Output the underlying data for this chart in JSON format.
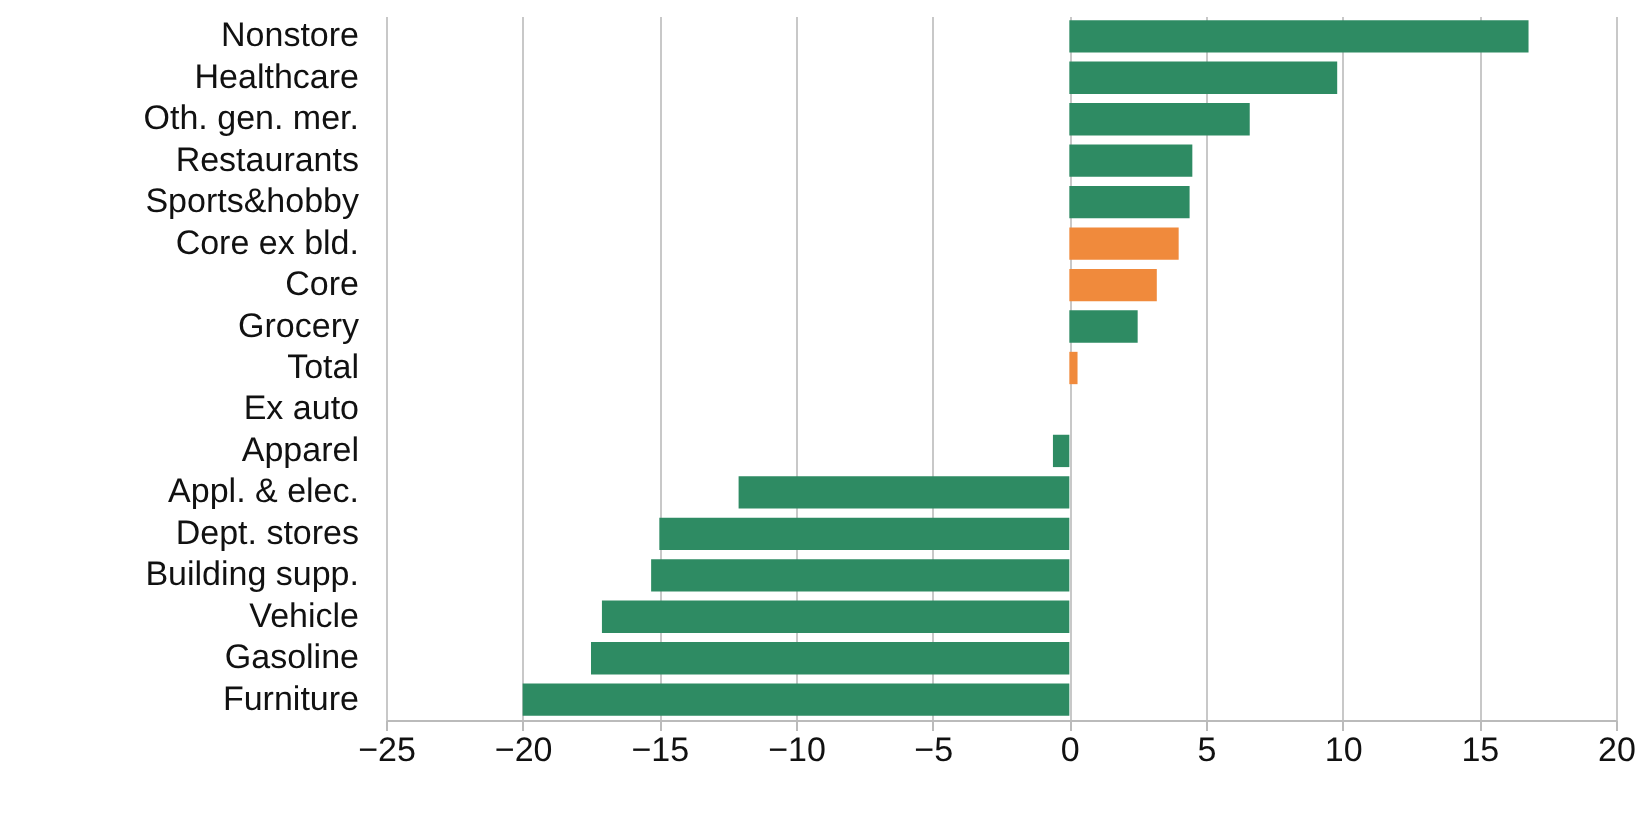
{
  "chart_data": {
    "type": "bar",
    "orientation": "horizontal",
    "categories": [
      "Nonstore",
      "Healthcare",
      "Oth. gen. mer.",
      "Restaurants",
      "Sports&hobby",
      "Core ex bld.",
      "Core",
      "Grocery",
      "Total",
      "Ex auto",
      "Apparel",
      "Appl. & elec.",
      "Dept. stores",
      "Building supp.",
      "Vehicle",
      "Gasoline",
      "Furniture"
    ],
    "values": [
      16.8,
      9.8,
      6.6,
      4.5,
      4.4,
      4.0,
      3.2,
      2.5,
      0.3,
      0,
      -0.6,
      -12.1,
      -15.0,
      -15.3,
      -17.1,
      -17.5,
      -20.0
    ],
    "colors": [
      "#2e8b63",
      "#2e8b63",
      "#2e8b63",
      "#2e8b63",
      "#2e8b63",
      "#f08a3c",
      "#f08a3c",
      "#2e8b63",
      "#f08a3c",
      "#2e8b63",
      "#2e8b63",
      "#2e8b63",
      "#2e8b63",
      "#2e8b63",
      "#2e8b63",
      "#2e8b63",
      "#2e8b63"
    ],
    "xlim": [
      -25,
      20
    ],
    "xticks": [
      -25,
      -20,
      -15,
      -10,
      -5,
      0,
      5,
      10,
      15,
      20
    ],
    "grid": "x"
  }
}
